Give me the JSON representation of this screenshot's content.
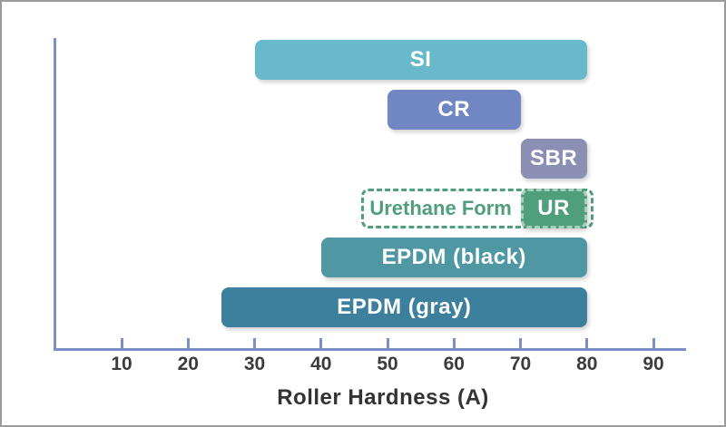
{
  "chart_data": {
    "type": "bar",
    "orientation": "horizontal-range",
    "title": "",
    "xlabel": "Roller Hardness (A)",
    "ylabel": "",
    "xlim": [
      0,
      95
    ],
    "xticks": [
      10,
      20,
      30,
      40,
      50,
      60,
      70,
      80,
      90
    ],
    "grid": false,
    "legend": "none",
    "series": [
      {
        "label": "SI",
        "start": 30,
        "end": 80,
        "color": "#68b9cb",
        "style": "solid"
      },
      {
        "label": "CR",
        "start": 50,
        "end": 70,
        "color": "#7187c4",
        "style": "solid"
      },
      {
        "label": "SBR",
        "start": 70,
        "end": 80,
        "color": "#8b8fb4",
        "style": "solid"
      },
      {
        "label": "Urethane Form",
        "start": 46,
        "end": 81,
        "color": "#4f9e7c",
        "style": "dashed-outline",
        "solid_segment": {
          "label": "UR",
          "start": 70,
          "end": 80
        }
      },
      {
        "label": "EPDM (black)",
        "start": 40,
        "end": 80,
        "color": "#4f98a3",
        "style": "solid"
      },
      {
        "label": "EPDM (gray)",
        "start": 25,
        "end": 80,
        "color": "#3c809d",
        "style": "solid"
      }
    ]
  },
  "colors": {
    "axis": "#7c90c7",
    "tick_label": "#3c3c3c",
    "axis_label": "#333333",
    "frame_border": "#9b9b9b",
    "background": "#ffffff",
    "bar_text": "#ffffff"
  }
}
